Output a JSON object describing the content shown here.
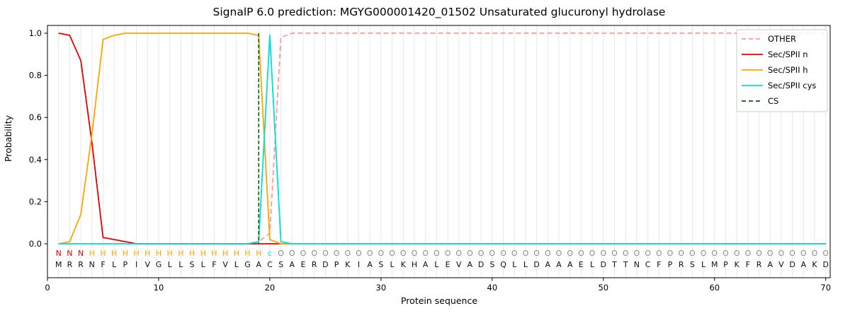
{
  "chart_data": {
    "type": "line",
    "title": "SignalP 6.0 prediction: MGYG000001420_01502 Unsaturated glucuronyl hydrolase",
    "xlabel": "Protein sequence",
    "ylabel": "Probability",
    "xlim": [
      0,
      70.4
    ],
    "ylim": [
      0.0,
      1.0
    ],
    "xticks": [
      0,
      10,
      20,
      30,
      40,
      50,
      60,
      70
    ],
    "yticks": [
      0.0,
      0.2,
      0.4,
      0.6,
      0.8,
      1.0
    ],
    "grid": "light vertical gridline at every residue position 1-70, no horizontal gridlines",
    "legend_position": "upper right",
    "sequence": "MRRNFLPIVGLLSLFVLGACSAERDPKIASLKHALEVADSQLLDAAAELDTTNCFPRSLMPKFRAVDAKD",
    "region_labels": "NNNHHHHHHHHHHHHHHHHcOOOOOOOOOOOOOOOOOOOOOOOOOOOOOOOOOOOOOOOOOOOOOOOOOO",
    "region_label_colors": {
      "N": "#e50000",
      "H": "#ffa500",
      "c": "#00dede",
      "O": "#8a8a8a"
    },
    "sequence_color": "#111111",
    "cs_position": 19,
    "series": [
      {
        "name": "OTHER",
        "color": "#ff9896",
        "style": "dashed",
        "values": [
          0,
          0,
          0,
          0,
          0,
          0,
          0,
          0,
          0,
          0,
          0,
          0,
          0,
          0,
          0,
          0,
          0,
          0,
          0.01,
          0.05,
          0.98,
          1,
          1,
          1,
          1,
          1,
          1,
          1,
          1,
          1,
          1,
          1,
          1,
          1,
          1,
          1,
          1,
          1,
          1,
          1,
          1,
          1,
          1,
          1,
          1,
          1,
          1,
          1,
          1,
          1,
          1,
          1,
          1,
          1,
          1,
          1,
          1,
          1,
          1,
          1,
          1,
          1,
          1,
          1,
          1,
          1,
          1,
          1,
          1,
          1
        ]
      },
      {
        "name": "Sec/SPII n",
        "color": "#e50000",
        "style": "solid",
        "values": [
          1,
          0.99,
          0.87,
          0.48,
          0.03,
          0.02,
          0.01,
          0,
          0,
          0,
          0,
          0,
          0,
          0,
          0,
          0,
          0,
          0,
          0,
          0,
          0,
          0,
          0,
          0,
          0,
          0,
          0,
          0,
          0,
          0,
          0,
          0,
          0,
          0,
          0,
          0,
          0,
          0,
          0,
          0,
          0,
          0,
          0,
          0,
          0,
          0,
          0,
          0,
          0,
          0,
          0,
          0,
          0,
          0,
          0,
          0,
          0,
          0,
          0,
          0,
          0,
          0,
          0,
          0,
          0,
          0,
          0,
          0,
          0,
          0
        ]
      },
      {
        "name": "Sec/SPII h",
        "color": "#ffa500",
        "style": "solid",
        "values": [
          0,
          0.01,
          0.14,
          0.52,
          0.97,
          0.99,
          1,
          1,
          1,
          1,
          1,
          1,
          1,
          1,
          1,
          1,
          1,
          1,
          0.99,
          0.02,
          0,
          0,
          0,
          0,
          0,
          0,
          0,
          0,
          0,
          0,
          0,
          0,
          0,
          0,
          0,
          0,
          0,
          0,
          0,
          0,
          0,
          0,
          0,
          0,
          0,
          0,
          0,
          0,
          0,
          0,
          0,
          0,
          0,
          0,
          0,
          0,
          0,
          0,
          0,
          0,
          0,
          0,
          0,
          0,
          0,
          0,
          0,
          0,
          0,
          0
        ]
      },
      {
        "name": "Sec/SPII cys",
        "color": "#00dede",
        "style": "solid",
        "values": [
          0,
          0,
          0,
          0,
          0,
          0,
          0,
          0,
          0,
          0,
          0,
          0,
          0,
          0,
          0,
          0,
          0,
          0,
          0.01,
          0.99,
          0.01,
          0,
          0,
          0,
          0,
          0,
          0,
          0,
          0,
          0,
          0,
          0,
          0,
          0,
          0,
          0,
          0,
          0,
          0,
          0,
          0,
          0,
          0,
          0,
          0,
          0,
          0,
          0,
          0,
          0,
          0,
          0,
          0,
          0,
          0,
          0,
          0,
          0,
          0,
          0,
          0,
          0,
          0,
          0,
          0,
          0,
          0,
          0,
          0,
          0
        ]
      },
      {
        "name": "CS",
        "color": "#006400",
        "style": "dashed",
        "vline_x": 19
      }
    ]
  }
}
